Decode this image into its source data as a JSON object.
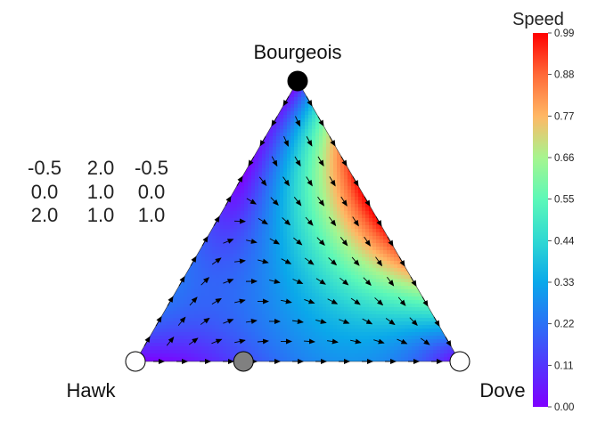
{
  "chart_data": {
    "type": "ternary-vector-field",
    "vertices": [
      {
        "name": "Bourgeois",
        "position": "top"
      },
      {
        "name": "Hawk",
        "position": "bottom-left"
      },
      {
        "name": "Dove",
        "position": "bottom-right"
      }
    ],
    "payoff_matrix": [
      [
        "-0.5",
        "2.0",
        "-0.5"
      ],
      [
        "0.0",
        "1.0",
        "0.0"
      ],
      [
        "2.0",
        "1.0",
        "1.0"
      ]
    ],
    "colorbar": {
      "title": "Speed",
      "colormap": "rainbow",
      "min": 0.0,
      "max": 0.99,
      "ticks": [
        "0.00",
        "0.11",
        "0.22",
        "0.33",
        "0.44",
        "0.55",
        "0.66",
        "0.77",
        "0.88",
        "0.99"
      ]
    },
    "equilibria": [
      {
        "point": "Bourgeois",
        "barycentric": [
          1,
          0,
          0
        ],
        "stability": "stable",
        "color": "#000000"
      },
      {
        "point": "Hawk",
        "barycentric": [
          0,
          1,
          0
        ],
        "stability": "unstable",
        "color": "#ffffff"
      },
      {
        "point": "Dove",
        "barycentric": [
          0,
          0,
          1
        ],
        "stability": "unstable",
        "color": "#ffffff"
      },
      {
        "point": "Hawk-Dove mix",
        "barycentric": [
          0,
          0.667,
          0.333
        ],
        "stability": "saddle",
        "color": "#808080"
      }
    ]
  }
}
